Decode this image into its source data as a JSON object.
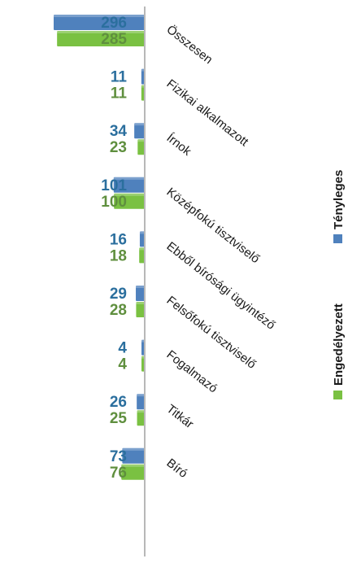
{
  "chart_data": {
    "type": "bar",
    "orientation": "horizontal",
    "categories": [
      "Összesen",
      "Fizikai alkalmazott",
      "Írnok",
      "Középfokú tisztviselő",
      "Ebből bírósági ügyintéző",
      "Felsőfokú tisztviselő",
      "Fogalmazó",
      "Titkár",
      "Bíró"
    ],
    "series": [
      {
        "name": "Tényleges",
        "color": "#4f81bd",
        "values": [
          296,
          11,
          34,
          101,
          16,
          29,
          4,
          26,
          73
        ]
      },
      {
        "name": "Engedélyezett",
        "color": "#7ac142",
        "values": [
          285,
          11,
          23,
          100,
          18,
          28,
          4,
          25,
          76
        ]
      }
    ],
    "value_label_colors": {
      "Tényleges": "#2b6f9e",
      "Engedélyezett": "#5f8f3e"
    },
    "legend_position": "right",
    "grid": false
  }
}
